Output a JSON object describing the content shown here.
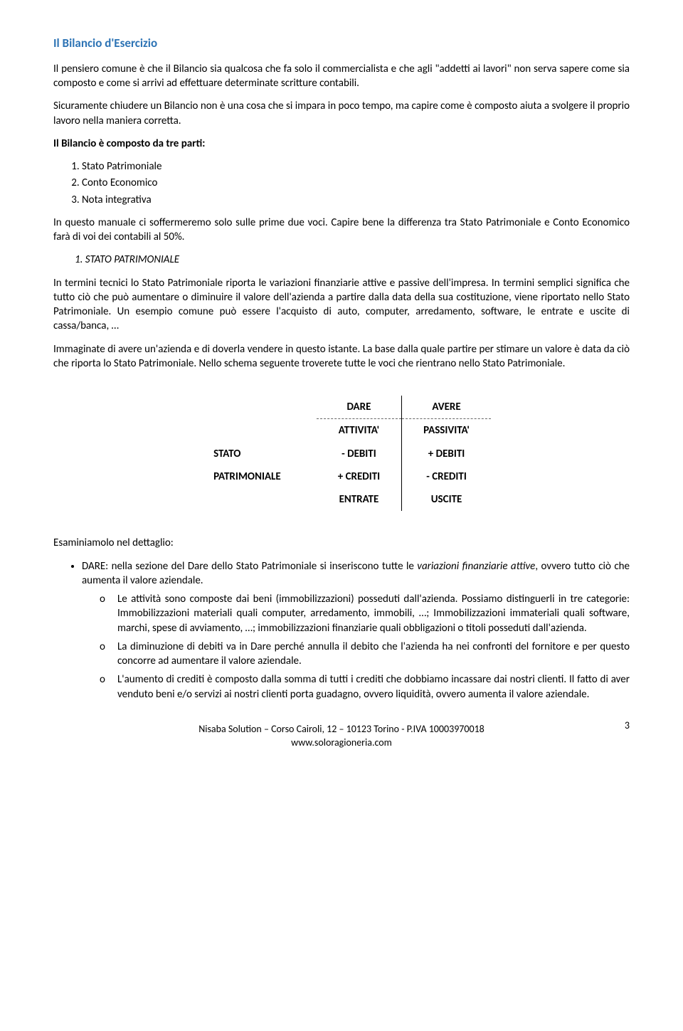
{
  "title": "Il Bilancio d'Esercizio",
  "p1": "Il pensiero comune è che il Bilancio sia qualcosa che fa solo il commercialista e che agli \"addetti ai lavori\" non serva sapere come sia composto e come si arrivi ad effettuare determinate scritture contabili.",
  "p2": "Sicuramente chiudere un Bilancio non è una cosa che si impara in poco tempo, ma capire come è composto aiuta a svolgere il proprio lavoro nella maniera corretta.",
  "p3": "Il Bilancio è composto da tre parti:",
  "list1": [
    "Stato Patrimoniale",
    "Conto Economico",
    "Nota integrativa"
  ],
  "p4": "In questo manuale ci soffermeremo solo sulle prime due voci. Capire bene la differenza tra Stato Patrimoniale e Conto Economico farà di voi dei contabili al 50%.",
  "section1": "1.   STATO PATRIMONIALE",
  "p5": "In termini tecnici lo Stato Patrimoniale riporta le variazioni finanziarie attive e passive dell'impresa. In termini semplici significa che tutto ciò che può aumentare o diminuire il valore dell'azienda a partire dalla data della sua costituzione, viene riportato nello Stato Patrimoniale. Un esempio comune può essere l'acquisto di auto, computer, arredamento, software, le entrate e uscite di cassa/banca, …",
  "p6": "Immaginate di avere un'azienda e di doverla vendere in questo istante. La base dalla quale partire per stimare un valore è data da ciò che riporta lo Stato Patrimoniale. Nello schema seguente troverete tutte le voci che rientrano nello Stato Patrimoniale.",
  "table": {
    "label1": "STATO",
    "label2": "PATRIMONIALE",
    "h1": "DARE",
    "h2": "AVERE",
    "r1c1": "ATTIVITA'",
    "r1c2": "PASSIVITA'",
    "r2c1": "- DEBITI",
    "r2c2": "+ DEBITI",
    "r3c1": "+ CREDITI",
    "r3c2": "- CREDITI",
    "r4c1": "ENTRATE",
    "r4c2": "USCITE"
  },
  "p7": "Esaminiamolo nel dettaglio:",
  "bullet1_pre": "DARE: nella sezione del Dare dello Stato Patrimoniale si inseriscono tutte le ",
  "bullet1_it": "variazioni finanziarie attive",
  "bullet1_post": ", ovvero tutto ciò che aumenta il valore aziendale.",
  "sub1": "Le attività sono composte dai beni (immobilizzazioni) posseduti dall'azienda. Possiamo distinguerli in tre categorie: Immobilizzazioni materiali quali computer, arredamento, immobili, …; Immobilizzazioni immateriali quali software, marchi, spese di avviamento, …; immobilizzazioni finanziarie quali obbligazioni o titoli posseduti dall'azienda.",
  "sub2": "La diminuzione di debiti va in Dare perché annulla il debito che l'azienda ha nei confronti del fornitore e per questo concorre ad aumentare il valore aziendale.",
  "sub3": "L'aumento di crediti è composto dalla somma di tutti i crediti che dobbiamo incassare dai nostri clienti. Il fatto di aver venduto beni e/o servizi ai nostri clienti porta guadagno, ovvero liquidità, ovvero aumenta il valore aziendale.",
  "footer1": "Nisaba Solution – Corso Cairoli, 12 – 10123 Torino - P.IVA 10003970018",
  "footer2": "www.soloragioneria.com",
  "pagenum": "3"
}
